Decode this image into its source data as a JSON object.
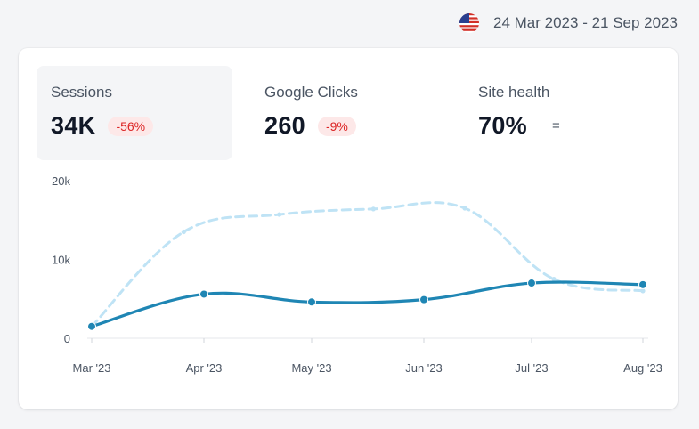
{
  "header": {
    "date_range": "24 Mar 2023 - 21 Sep 2023",
    "flag_icon": "us-flag-icon"
  },
  "metrics": [
    {
      "label": "Sessions",
      "value": "34K",
      "change": "-56%",
      "active": true
    },
    {
      "label": "Google Clicks",
      "value": "260",
      "change": "-9%",
      "active": false
    },
    {
      "label": "Site health",
      "value": "70%",
      "change": "=",
      "active": false
    }
  ],
  "colors": {
    "primary_line": "#1f86b4",
    "secondary_line": "#bfe3f5",
    "negative": "#dc2626"
  },
  "chart_data": {
    "type": "line",
    "y_ticks": [
      "20k",
      "10k",
      "0"
    ],
    "ylim": [
      0,
      20000
    ],
    "categories": [
      "Mar '23",
      "Apr '23",
      "May '23",
      "Jun '23",
      "Jul '23",
      "Aug '23"
    ],
    "series": [
      {
        "style": "solid",
        "color": "#1f86b4",
        "points": [
          [
            0,
            1500
          ],
          [
            1,
            5600
          ],
          [
            2,
            4600
          ],
          [
            3,
            4900
          ],
          [
            4,
            7000
          ],
          [
            5,
            6800
          ]
        ]
      },
      {
        "style": "dashed",
        "color": "#bfe3f5",
        "points": [
          [
            0,
            1500
          ],
          [
            0.82,
            13500
          ],
          [
            1.7,
            15700
          ],
          [
            2.55,
            16400
          ],
          [
            3.38,
            16500
          ],
          [
            4.2,
            7500
          ],
          [
            5,
            6000
          ]
        ]
      }
    ]
  }
}
